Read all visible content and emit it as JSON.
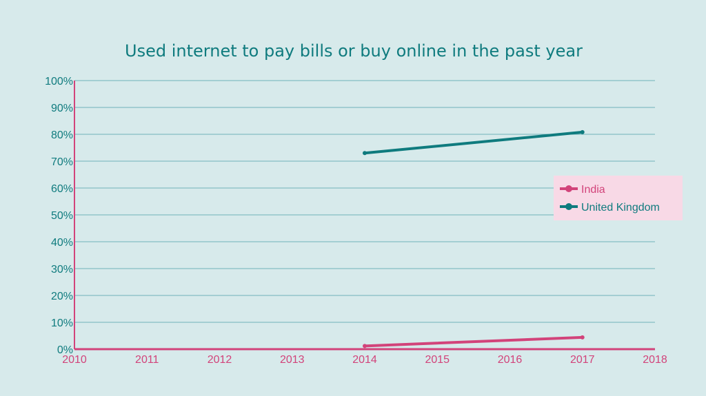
{
  "colors": {
    "background": "#d7eaeb",
    "title": "#0f7b7e",
    "y_axis_text": "#0f7b7e",
    "x_axis_text": "#d2437a",
    "axis_line": "#d2437a",
    "grid": "#6fb3b8",
    "legend_bg": "#f8d9e6",
    "india": "#d2437a",
    "uk": "#0f7b7e"
  },
  "chart_data": {
    "type": "line",
    "title": "Used internet to pay bills or buy online in the past year",
    "xlabel": "",
    "ylabel": "",
    "x_ticks": [
      "2010",
      "2011",
      "2012",
      "2013",
      "2014",
      "2015",
      "2016",
      "2017",
      "2018"
    ],
    "y_ticks": [
      "0%",
      "10%",
      "20%",
      "30%",
      "40%",
      "50%",
      "60%",
      "70%",
      "80%",
      "90%",
      "100%"
    ],
    "xlim": [
      2010,
      2018
    ],
    "ylim": [
      0,
      100
    ],
    "grid": true,
    "legend_position": "right",
    "series": [
      {
        "name": "India",
        "x": [
          2014,
          2017
        ],
        "y": [
          1.2,
          4.4
        ]
      },
      {
        "name": "United Kingdom",
        "x": [
          2014,
          2017
        ],
        "y": [
          73,
          80.8
        ]
      }
    ]
  }
}
